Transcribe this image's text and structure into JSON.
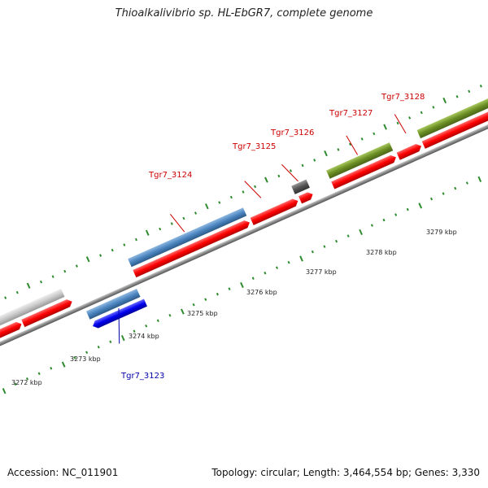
{
  "title": "Thioalkalivibrio sp. HL-EbGR7, complete genome",
  "accession": "Accession: NC_011901",
  "summary": "Topology: circular; Length: 3,464,554 bp; Genes: 3,330",
  "colors": {
    "forward_cds": "#ff0000",
    "label_red": "#cc0000",
    "label_blue": "#0000aa",
    "steelblue": "#4a84bf",
    "blue": "#0000ee",
    "olive": "#6b8e23",
    "gray": "#c8c8c8",
    "darkgray": "#555555",
    "ticks": "#2e8b2e"
  },
  "kbp_labels": [
    "3272 kbp",
    "3273 kbp",
    "3274 kbp",
    "3275 kbp",
    "3276 kbp",
    "3277 kbp",
    "3278 kbp",
    "3279 kbp"
  ],
  "gene_labels": [
    "Tgr7_3123",
    "Tgr7_3124",
    "Tgr7_3125",
    "Tgr7_3126",
    "Tgr7_3127",
    "Tgr7_3128"
  ]
}
